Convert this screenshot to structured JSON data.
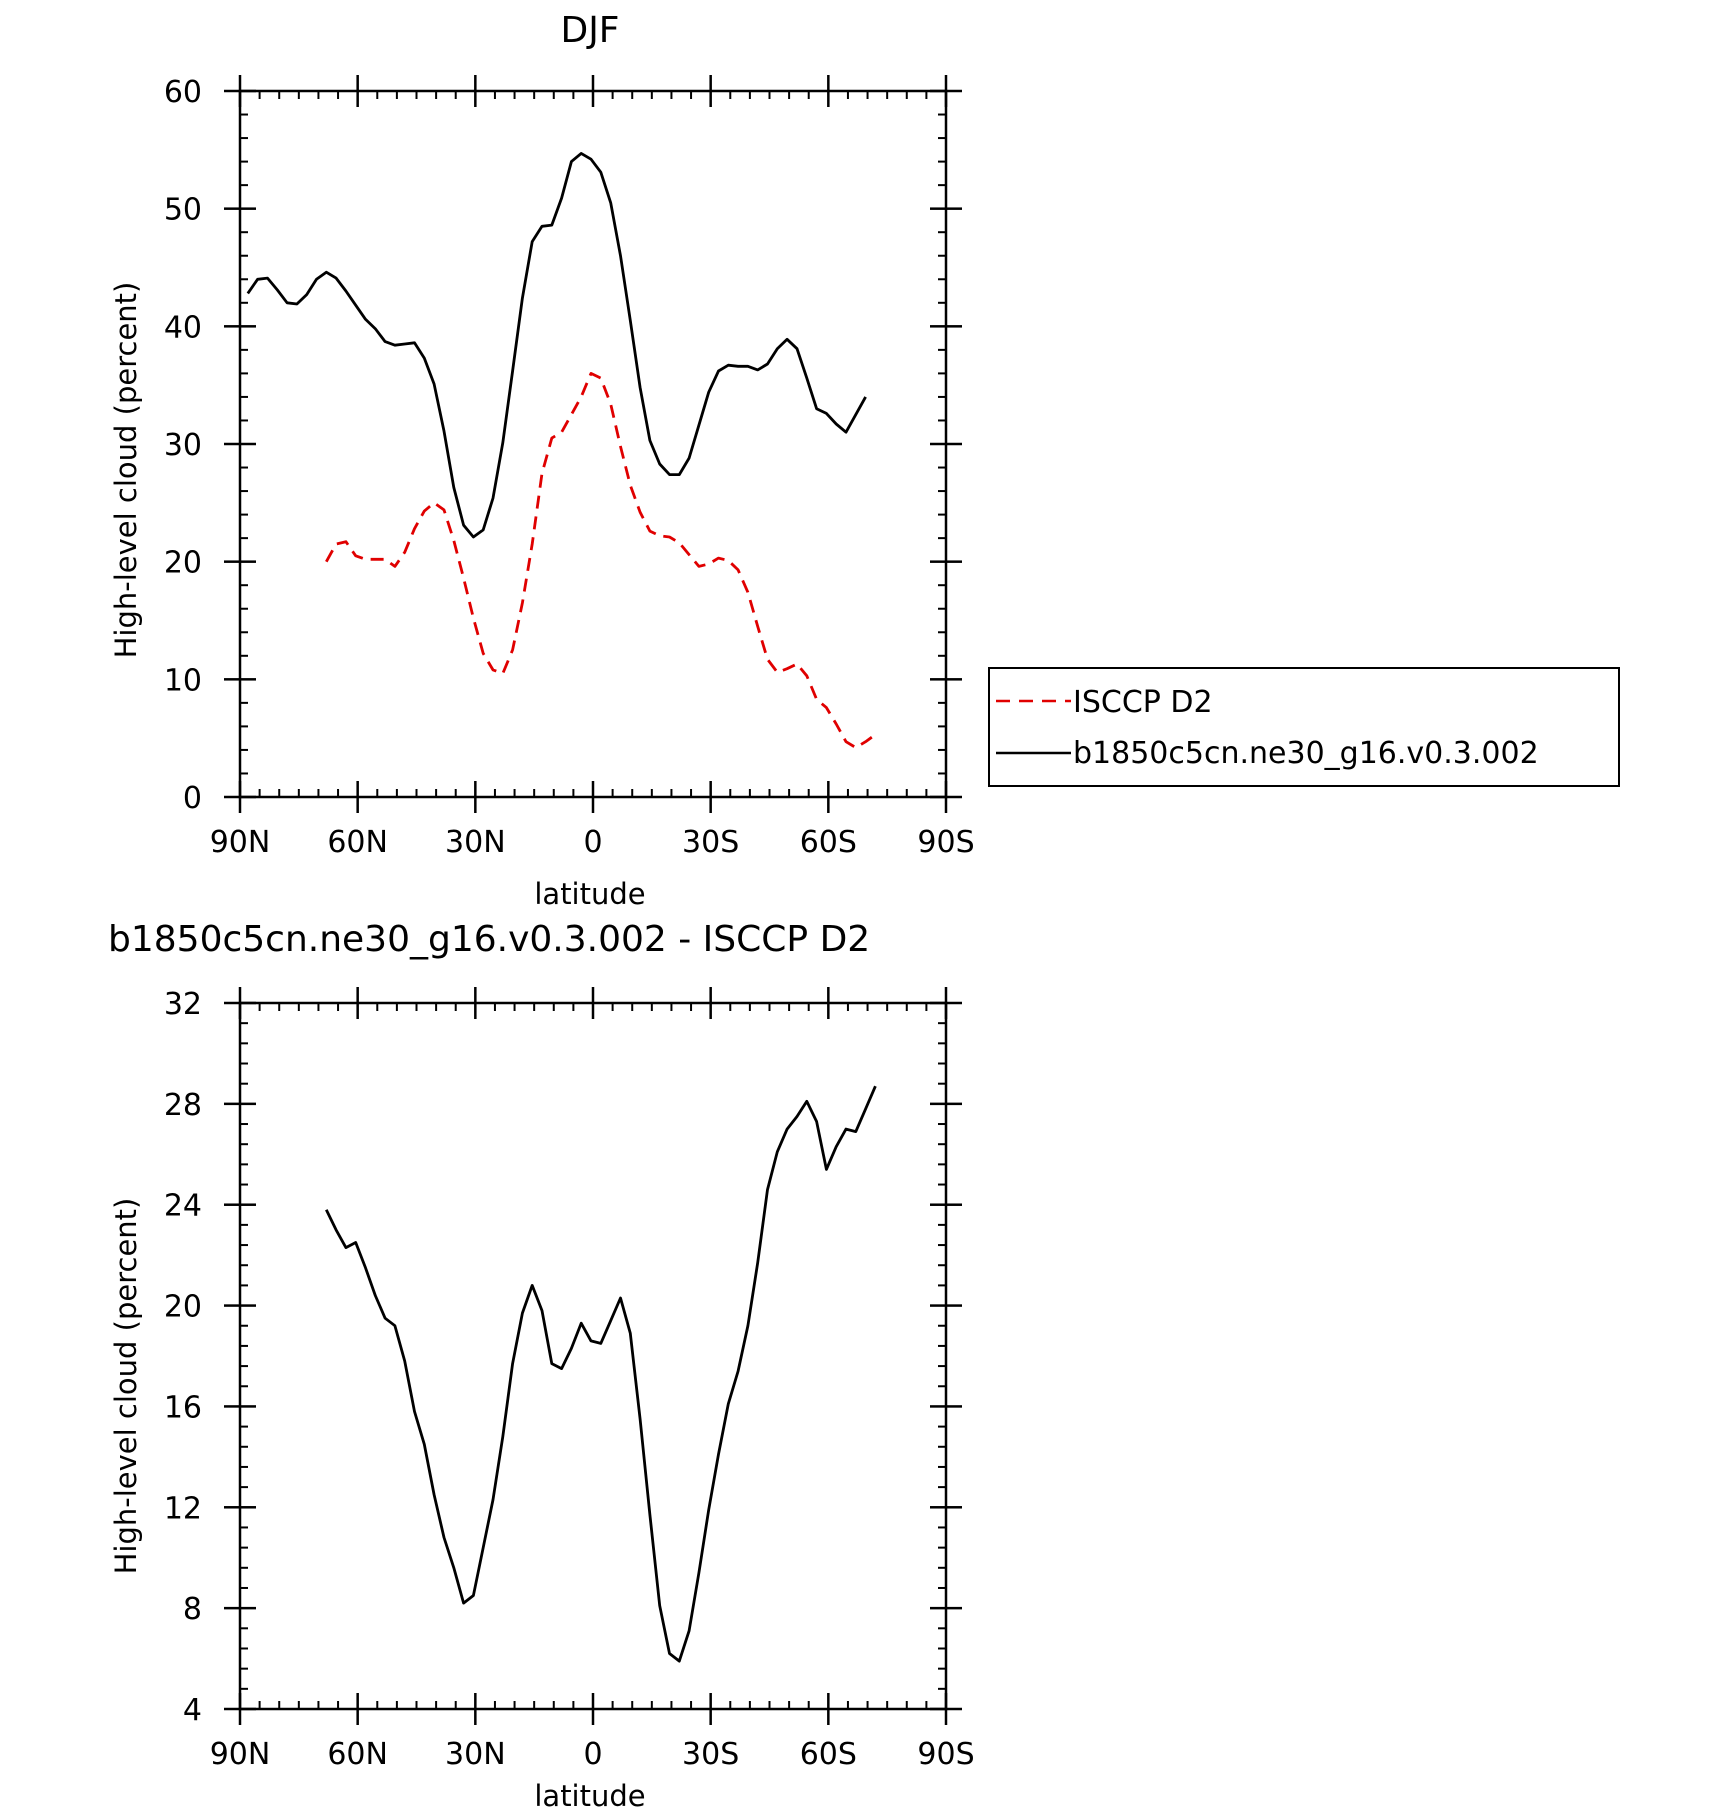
{
  "chart_data": [
    {
      "type": "line",
      "title": "DJF",
      "xlabel": "latitude",
      "ylabel": "High-level cloud (percent)",
      "xlim": [
        -90,
        90
      ],
      "ylim": [
        0,
        60
      ],
      "x_ticks": [
        -90,
        -60,
        -30,
        0,
        30,
        60,
        90
      ],
      "x_tick_labels": [
        "90N",
        "60N",
        "30N",
        "0",
        "30S",
        "60S",
        "90S"
      ],
      "y_ticks": [
        0,
        10,
        20,
        30,
        40,
        50,
        60
      ],
      "y_tick_labels": [
        "0",
        "10",
        "20",
        "30",
        "40",
        "50",
        "60"
      ],
      "x_minor_step": 5,
      "y_minor_step": 2,
      "grid": false,
      "legend_position": "outside-right",
      "series": [
        {
          "name": "ISCCP D2",
          "color": "#e00000",
          "dash": "dashed",
          "points": [
            [
              -68,
              20
            ],
            [
              -65.5,
              21.5
            ],
            [
              -63,
              21.7
            ],
            [
              -60.5,
              20.5
            ],
            [
              -58,
              20.2
            ],
            [
              -55.5,
              20.2
            ],
            [
              -53,
              20.2
            ],
            [
              -50.5,
              19.6
            ],
            [
              -48,
              20.8
            ],
            [
              -45.5,
              22.8
            ],
            [
              -43,
              24.3
            ],
            [
              -40.5,
              25
            ],
            [
              -38,
              24.4
            ],
            [
              -35.5,
              21.8
            ],
            [
              -33,
              18.6
            ],
            [
              -30.5,
              15.2
            ],
            [
              -28,
              12.2
            ],
            [
              -25.5,
              10.8
            ],
            [
              -23,
              10.5
            ],
            [
              -20.5,
              12.5
            ],
            [
              -18,
              16.5
            ],
            [
              -15.5,
              21.5
            ],
            [
              -13,
              27.5
            ],
            [
              -10.5,
              30.5
            ],
            [
              -8,
              31
            ],
            [
              -5.5,
              32.5
            ],
            [
              -3,
              34
            ],
            [
              -0.5,
              36
            ],
            [
              2,
              35.6
            ],
            [
              4.5,
              33.4
            ],
            [
              7,
              29.8
            ],
            [
              9.5,
              26.5
            ],
            [
              12,
              24.2
            ],
            [
              14.5,
              22.6
            ],
            [
              17,
              22.2
            ],
            [
              19.5,
              22.1
            ],
            [
              22,
              21.6
            ],
            [
              24.5,
              20.6
            ],
            [
              27,
              19.6
            ],
            [
              29.5,
              19.8
            ],
            [
              32,
              20.3
            ],
            [
              34.5,
              20.1
            ],
            [
              37,
              19.3
            ],
            [
              39.5,
              17.4
            ],
            [
              42,
              14.5
            ],
            [
              44.5,
              11.7
            ],
            [
              47,
              10.6
            ],
            [
              49.5,
              10.9
            ],
            [
              52,
              11.3
            ],
            [
              54.5,
              10.3
            ],
            [
              57,
              8.3
            ],
            [
              59.5,
              7.6
            ],
            [
              62,
              6.2
            ],
            [
              64.5,
              4.7
            ],
            [
              67,
              4.2
            ],
            [
              69.5,
              4.7
            ],
            [
              72,
              5.3
            ]
          ]
        },
        {
          "name": "b1850c5cn.ne30_g16.v0.3.002",
          "color": "#000000",
          "dash": "solid",
          "points": [
            [
              -88,
              42.8
            ],
            [
              -85.5,
              44
            ],
            [
              -83,
              44.1
            ],
            [
              -80.5,
              43.1
            ],
            [
              -78,
              42
            ],
            [
              -75.5,
              41.9
            ],
            [
              -73,
              42.7
            ],
            [
              -70.5,
              44
            ],
            [
              -68,
              44.6
            ],
            [
              -65.5,
              44.1
            ],
            [
              -63,
              43
            ],
            [
              -60.5,
              41.8
            ],
            [
              -58,
              40.6
            ],
            [
              -55.5,
              39.8
            ],
            [
              -53,
              38.7
            ],
            [
              -50.5,
              38.4
            ],
            [
              -48,
              38.5
            ],
            [
              -45.5,
              38.6
            ],
            [
              -43,
              37.3
            ],
            [
              -40.5,
              35.1
            ],
            [
              -38,
              31.1
            ],
            [
              -35.5,
              26.3
            ],
            [
              -33,
              23.1
            ],
            [
              -30.5,
              22.1
            ],
            [
              -28,
              22.7
            ],
            [
              -25.5,
              25.4
            ],
            [
              -23,
              30.1
            ],
            [
              -20.5,
              36.2
            ],
            [
              -18,
              42.4
            ],
            [
              -15.5,
              47.2
            ],
            [
              -13,
              48.5
            ],
            [
              -10.5,
              48.6
            ],
            [
              -8,
              50.9
            ],
            [
              -5.5,
              54
            ],
            [
              -3,
              54.7
            ],
            [
              -0.5,
              54.2
            ],
            [
              2,
              53.1
            ],
            [
              4.5,
              50.5
            ],
            [
              7,
              46
            ],
            [
              9.5,
              40.5
            ],
            [
              12,
              34.8
            ],
            [
              14.5,
              30.3
            ],
            [
              17,
              28.3
            ],
            [
              19.5,
              27.4
            ],
            [
              22,
              27.4
            ],
            [
              24.5,
              28.8
            ],
            [
              27,
              31.6
            ],
            [
              29.5,
              34.4
            ],
            [
              32,
              36.2
            ],
            [
              34.5,
              36.7
            ],
            [
              37,
              36.6
            ],
            [
              39.5,
              36.6
            ],
            [
              42,
              36.3
            ],
            [
              44.5,
              36.8
            ],
            [
              47,
              38.1
            ],
            [
              49.5,
              38.9
            ],
            [
              52,
              38.1
            ],
            [
              54.5,
              35.6
            ],
            [
              57,
              33
            ],
            [
              59.5,
              32.6
            ],
            [
              62,
              31.7
            ],
            [
              64.5,
              31
            ],
            [
              67,
              32.5
            ],
            [
              69.5,
              34
            ]
          ]
        }
      ]
    },
    {
      "type": "line",
      "title": "b1850c5cn.ne30_g16.v0.3.002 - ISCCP D2",
      "xlabel": "latitude",
      "ylabel": "High-level cloud (percent)",
      "xlim": [
        -90,
        90
      ],
      "ylim": [
        4,
        32
      ],
      "x_ticks": [
        -90,
        -60,
        -30,
        0,
        30,
        60,
        90
      ],
      "x_tick_labels": [
        "90N",
        "60N",
        "30N",
        "0",
        "30S",
        "60S",
        "90S"
      ],
      "y_ticks": [
        4,
        8,
        12,
        16,
        20,
        24,
        28,
        32
      ],
      "y_tick_labels": [
        "4",
        "8",
        "12",
        "16",
        "20",
        "24",
        "28",
        "32"
      ],
      "x_minor_step": 5,
      "y_minor_step": 0.8,
      "grid": false,
      "series": [
        {
          "color": "#000000",
          "dash": "solid",
          "points": [
            [
              -68,
              23.8
            ],
            [
              -65.5,
              23
            ],
            [
              -63,
              22.3
            ],
            [
              -60.5,
              22.5
            ],
            [
              -58,
              21.5
            ],
            [
              -55.5,
              20.4
            ],
            [
              -53,
              19.5
            ],
            [
              -50.5,
              19.2
            ],
            [
              -48,
              17.8
            ],
            [
              -45.5,
              15.8
            ],
            [
              -43,
              14.5
            ],
            [
              -40.5,
              12.5
            ],
            [
              -38,
              10.8
            ],
            [
              -35.5,
              9.6
            ],
            [
              -33,
              8.2
            ],
            [
              -30.5,
              8.5
            ],
            [
              -28,
              10.4
            ],
            [
              -25.5,
              12.3
            ],
            [
              -23,
              14.8
            ],
            [
              -20.5,
              17.7
            ],
            [
              -18,
              19.7
            ],
            [
              -15.5,
              20.8
            ],
            [
              -13,
              19.8
            ],
            [
              -10.5,
              17.7
            ],
            [
              -8,
              17.5
            ],
            [
              -5.5,
              18.3
            ],
            [
              -3,
              19.3
            ],
            [
              -0.5,
              18.6
            ],
            [
              2,
              18.5
            ],
            [
              4.5,
              19.4
            ],
            [
              7,
              20.3
            ],
            [
              9.5,
              18.9
            ],
            [
              12,
              15.5
            ],
            [
              14.5,
              11.7
            ],
            [
              17,
              8.1
            ],
            [
              19.5,
              6.2
            ],
            [
              22,
              5.9
            ],
            [
              24.5,
              7.1
            ],
            [
              27,
              9.4
            ],
            [
              29.5,
              11.9
            ],
            [
              32,
              14.1
            ],
            [
              34.5,
              16.1
            ],
            [
              37,
              17.4
            ],
            [
              39.5,
              19.2
            ],
            [
              42,
              21.7
            ],
            [
              44.5,
              24.6
            ],
            [
              47,
              26.1
            ],
            [
              49.5,
              27
            ],
            [
              52,
              27.5
            ],
            [
              54.5,
              28.1
            ],
            [
              57,
              27.3
            ],
            [
              59.5,
              25.4
            ],
            [
              62,
              26.3
            ],
            [
              64.5,
              27
            ],
            [
              67,
              26.9
            ],
            [
              69.5,
              27.8
            ],
            [
              72,
              28.7
            ]
          ]
        }
      ]
    }
  ]
}
